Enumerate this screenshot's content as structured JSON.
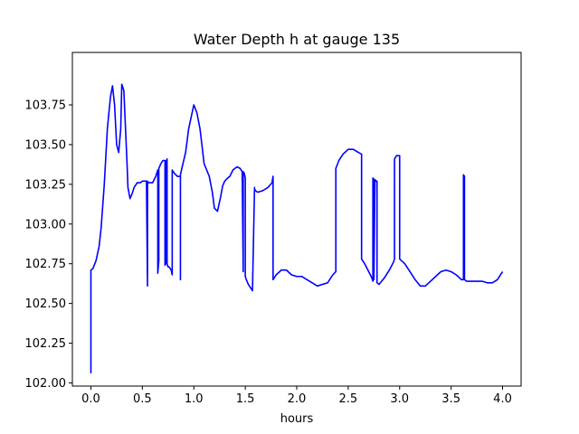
{
  "chart_data": {
    "type": "line",
    "title": "Water Depth h at gauge 135",
    "xlabel": "hours",
    "ylabel": "",
    "xlim": [
      -0.18,
      4.18
    ],
    "ylim": [
      101.98,
      104.08
    ],
    "xticks": [
      0.0,
      0.5,
      1.0,
      1.5,
      2.0,
      2.5,
      3.0,
      3.5,
      4.0
    ],
    "xtick_labels": [
      "0.0",
      "0.5",
      "1.0",
      "1.5",
      "2.0",
      "2.5",
      "3.0",
      "3.5",
      "4.0"
    ],
    "yticks": [
      102.0,
      102.25,
      102.5,
      102.75,
      103.0,
      103.25,
      103.5,
      103.75
    ],
    "ytick_labels": [
      "102.00",
      "102.25",
      "102.50",
      "102.75",
      "103.00",
      "103.25",
      "103.50",
      "103.75"
    ],
    "grid": false,
    "series": [
      {
        "color": "#0000ff",
        "x": [
          0.0,
          0.0,
          0.02,
          0.05,
          0.08,
          0.1,
          0.13,
          0.16,
          0.19,
          0.21,
          0.23,
          0.25,
          0.27,
          0.29,
          0.3,
          0.32,
          0.35,
          0.36,
          0.38,
          0.4,
          0.42,
          0.45,
          0.48,
          0.5,
          0.53,
          0.54,
          0.55,
          0.55,
          0.56,
          0.6,
          0.63,
          0.65,
          0.65,
          0.66,
          0.66,
          0.68,
          0.7,
          0.72,
          0.72,
          0.73,
          0.73,
          0.74,
          0.74,
          0.75,
          0.76,
          0.78,
          0.79,
          0.79,
          0.81,
          0.84,
          0.86,
          0.87,
          0.87,
          0.87,
          0.88,
          0.92,
          0.95,
          1.0,
          1.03,
          1.06,
          1.1,
          1.15,
          1.18,
          1.2,
          1.23,
          1.26,
          1.28,
          1.3,
          1.33,
          1.35,
          1.38,
          1.4,
          1.42,
          1.45,
          1.47,
          1.48,
          1.48,
          1.49,
          1.5,
          1.5,
          1.51,
          1.53,
          1.57,
          1.59,
          1.59,
          1.6,
          1.62,
          1.67,
          1.72,
          1.76,
          1.77,
          1.77,
          1.8,
          1.85,
          1.9,
          1.95,
          2.0,
          2.05,
          2.1,
          2.15,
          2.2,
          2.3,
          2.35,
          2.38,
          2.38,
          2.41,
          2.45,
          2.5,
          2.55,
          2.6,
          2.63,
          2.63,
          2.66,
          2.7,
          2.73,
          2.74,
          2.74,
          2.75,
          2.75,
          2.76,
          2.77,
          2.78,
          2.78,
          2.8,
          2.8,
          2.85,
          2.9,
          2.94,
          2.95,
          2.95,
          2.97,
          3.0,
          3.0,
          3.05,
          3.1,
          3.15,
          3.2,
          3.25,
          3.3,
          3.35,
          3.4,
          3.45,
          3.5,
          3.55,
          3.6,
          3.62,
          3.62,
          3.63,
          3.63,
          3.65,
          3.7,
          3.8,
          3.85,
          3.9,
          3.95,
          4.0
        ],
        "y": [
          102.06,
          102.71,
          102.72,
          102.77,
          102.86,
          102.98,
          103.25,
          103.6,
          103.8,
          103.87,
          103.75,
          103.5,
          103.45,
          103.6,
          103.88,
          103.84,
          103.4,
          103.23,
          103.16,
          103.19,
          103.23,
          103.26,
          103.26,
          103.27,
          103.27,
          103.27,
          102.61,
          103.27,
          103.26,
          103.26,
          103.3,
          103.34,
          102.69,
          102.77,
          103.35,
          103.38,
          103.4,
          103.4,
          102.74,
          103.4,
          102.75,
          103.41,
          102.75,
          102.73,
          102.73,
          102.71,
          102.68,
          103.34,
          103.32,
          103.3,
          103.3,
          103.3,
          102.65,
          103.31,
          103.34,
          103.45,
          103.6,
          103.75,
          103.7,
          103.6,
          103.38,
          103.3,
          103.2,
          103.1,
          103.08,
          103.17,
          103.24,
          103.27,
          103.29,
          103.3,
          103.34,
          103.35,
          103.36,
          103.35,
          103.33,
          102.7,
          103.33,
          103.32,
          103.29,
          102.67,
          102.65,
          102.62,
          102.58,
          103.23,
          103.22,
          103.21,
          103.2,
          103.21,
          103.23,
          103.26,
          103.3,
          102.65,
          102.68,
          102.71,
          102.71,
          102.68,
          102.67,
          102.67,
          102.65,
          102.63,
          102.61,
          102.63,
          102.68,
          102.7,
          103.35,
          103.4,
          103.44,
          103.47,
          103.47,
          103.45,
          103.44,
          102.78,
          102.75,
          102.7,
          102.66,
          102.64,
          103.29,
          103.28,
          102.65,
          103.28,
          103.27,
          103.27,
          102.63,
          102.62,
          102.62,
          102.66,
          102.71,
          102.76,
          102.78,
          103.41,
          103.43,
          103.43,
          102.78,
          102.75,
          102.7,
          102.65,
          102.61,
          102.61,
          102.64,
          102.67,
          102.7,
          102.71,
          102.7,
          102.68,
          102.65,
          102.65,
          103.31,
          103.3,
          102.65,
          102.64,
          102.64,
          102.64,
          102.63,
          102.63,
          102.65,
          102.7
        ]
      }
    ]
  }
}
